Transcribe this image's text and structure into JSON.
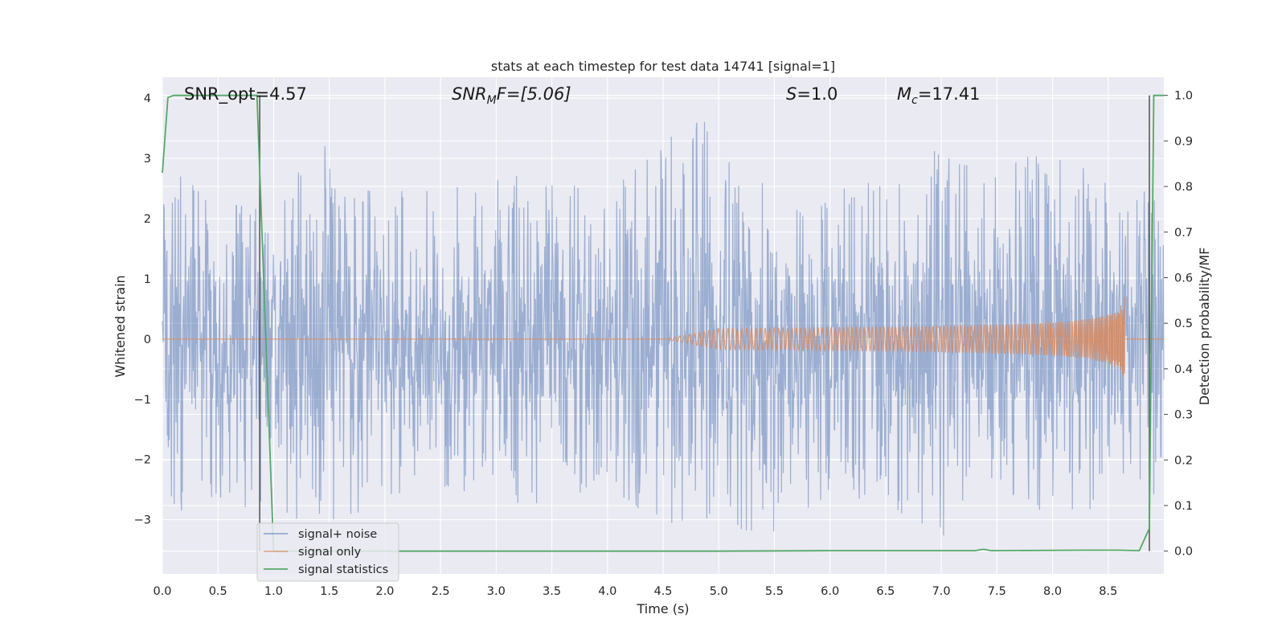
{
  "chart_data": {
    "type": "line",
    "title": "stats at each timestep for test data 14741 [signal=1]",
    "xlabel": "Time (s)",
    "ylabel": "Whitened strain",
    "y2label": "Detection probability/MF",
    "xlim": [
      0.0,
      9.0
    ],
    "ylim": [
      -3.9,
      4.35
    ],
    "y2lim": [
      -0.05,
      1.04
    ],
    "x_ticks": [
      "0.0",
      "0.5",
      "1.0",
      "1.5",
      "2.0",
      "2.5",
      "3.0",
      "3.5",
      "4.0",
      "4.5",
      "5.0",
      "5.5",
      "6.0",
      "6.5",
      "7.0",
      "7.5",
      "8.0",
      "8.5"
    ],
    "y_ticks": [
      "4",
      "3",
      "2",
      "1",
      "0",
      "−1",
      "−2",
      "−3"
    ],
    "y2_ticks": [
      "1.0",
      "0.9",
      "0.8",
      "0.7",
      "0.6",
      "0.5",
      "0.4",
      "0.3",
      "0.2",
      "0.1",
      "0.0"
    ],
    "grid": true,
    "legend_position": "lower-left",
    "annotations": {
      "snr_opt": "SNR_opt=4.57",
      "snr_mf_base": "SNR",
      "snr_mf_sub": "M",
      "snr_mf_rest": "F=[5.06]",
      "s_italic": "S",
      "s_value": "=1.0",
      "mc_base": "M",
      "mc_sub": "c",
      "mc_value": "=17.41"
    },
    "vertical_lines_x": [
      0.875,
      8.87
    ],
    "series": [
      {
        "name": "signal+ noise",
        "color": "#4c72b0",
        "description_free": true,
        "envelope": {
          "x": [
            0.0,
            0.5,
            1.0,
            1.5,
            2.0,
            2.5,
            3.0,
            3.5,
            4.0,
            4.5,
            4.9,
            5.5,
            6.0,
            6.5,
            7.0,
            7.5,
            8.0,
            8.5,
            9.0
          ],
          "upper": [
            2.9,
            2.5,
            2.6,
            3.3,
            2.5,
            2.6,
            2.8,
            2.6,
            2.5,
            3.3,
            4.0,
            2.5,
            2.6,
            2.7,
            3.2,
            3.0,
            3.1,
            2.8,
            2.5
          ],
          "lower": [
            -3.0,
            -2.7,
            -2.9,
            -3.2,
            -2.6,
            -2.5,
            -2.7,
            -2.9,
            -2.6,
            -3.0,
            -3.4,
            -3.2,
            -2.7,
            -2.9,
            -3.4,
            -2.7,
            -3.0,
            -2.8,
            -2.6
          ]
        }
      },
      {
        "name": "signal only",
        "color": "#dd8452",
        "chirp": {
          "start": 4.5,
          "end": 8.65,
          "peak_amplitude": 0.75
        }
      },
      {
        "name": "signal statistics",
        "color": "#55a868",
        "axis": "right",
        "x": [
          0.0,
          0.05,
          0.1,
          0.85,
          1.0,
          1.1,
          5.0,
          6.0,
          7.3,
          7.38,
          7.45,
          8.3,
          8.6,
          8.78,
          8.87,
          8.91,
          9.0
        ],
        "y": [
          0.83,
          0.995,
          1.0,
          1.0,
          0.0,
          0.0,
          0.0,
          0.001,
          0.001,
          0.004,
          0.001,
          0.002,
          0.002,
          0.001,
          0.05,
          1.0,
          1.0
        ]
      }
    ]
  }
}
